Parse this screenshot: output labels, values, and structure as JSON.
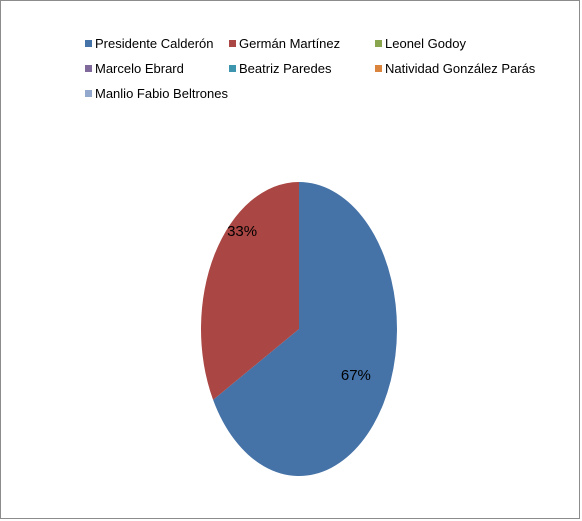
{
  "chart_data": {
    "type": "pie",
    "title": "",
    "categories": [
      "Presidente Calderón",
      "Germán Martínez",
      "Leonel Godoy",
      "Marcelo Ebrard",
      "Beatriz Paredes",
      "Natividad González Parás",
      "Manlio Fabio Beltrones"
    ],
    "values": [
      67,
      33,
      0,
      0,
      0,
      0,
      0
    ],
    "labels": [
      "67%",
      "33%",
      "",
      "",
      "",
      "",
      ""
    ],
    "colors": [
      "#4572A7",
      "#AA4643",
      "#89A54E",
      "#80699B",
      "#3D96AE",
      "#DB843D",
      "#92A8CD"
    ],
    "legend_position": "top"
  }
}
